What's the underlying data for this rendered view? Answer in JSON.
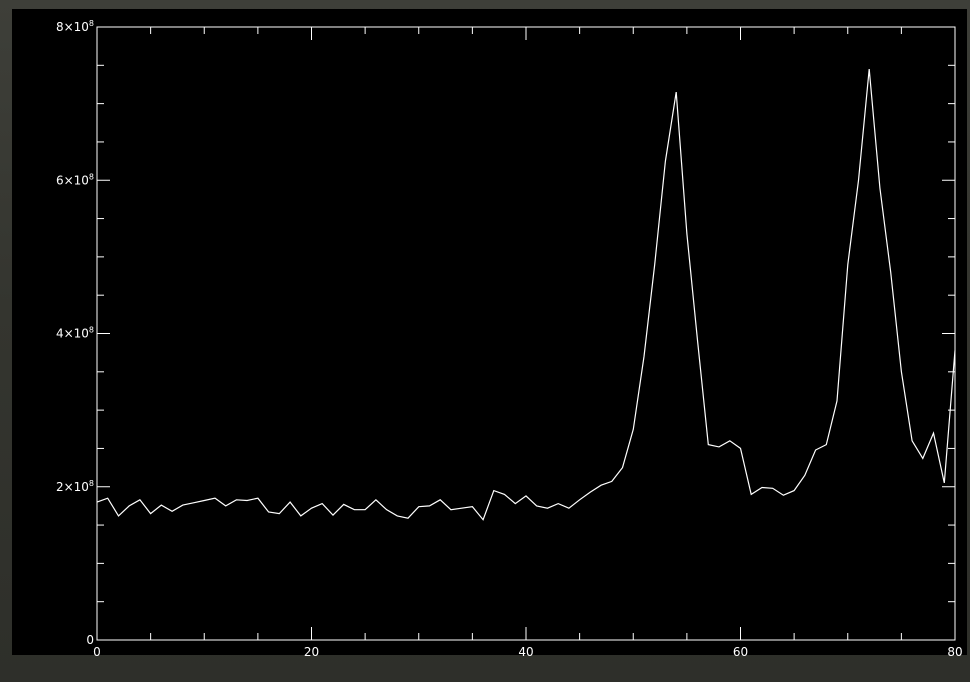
{
  "chart_data": {
    "type": "line",
    "title": "",
    "xlabel": "",
    "ylabel": "",
    "xlim": [
      0,
      80
    ],
    "ylim": [
      0,
      800000000
    ],
    "x_ticks": [
      {
        "value": 0,
        "label": "0"
      },
      {
        "value": 20,
        "label": "20"
      },
      {
        "value": 40,
        "label": "40"
      },
      {
        "value": 60,
        "label": "60"
      },
      {
        "value": 80,
        "label": "80"
      }
    ],
    "y_ticks": [
      {
        "value": 0,
        "label": "0",
        "exp": ""
      },
      {
        "value": 200000000,
        "label": "2×10",
        "exp": "8"
      },
      {
        "value": 400000000,
        "label": "4×10",
        "exp": "8"
      },
      {
        "value": 600000000,
        "label": "6×10",
        "exp": "8"
      },
      {
        "value": 800000000,
        "label": "8×10",
        "exp": "8"
      }
    ],
    "x_minor_step": 5,
    "y_minor_step": 50000000,
    "grid": false,
    "colors": {
      "background": "#000000",
      "line": "#ffffff",
      "axes": "#ffffff"
    },
    "series": [
      {
        "x": [
          0,
          1,
          2,
          3,
          4,
          5,
          6,
          7,
          8,
          9,
          10,
          11,
          12,
          13,
          14,
          15,
          16,
          17,
          18,
          19,
          20,
          21,
          22,
          23,
          24,
          25,
          26,
          27,
          28,
          29,
          30,
          31,
          32,
          33,
          34,
          35,
          36,
          37,
          38,
          39,
          40,
          41,
          42,
          43,
          44,
          45,
          46,
          47,
          48,
          49,
          50,
          51,
          52,
          53,
          54,
          55,
          56,
          57,
          58,
          59,
          60,
          61,
          62,
          63,
          64,
          65,
          66,
          67,
          68,
          69,
          70,
          71,
          72,
          73,
          74,
          75,
          76,
          77,
          78,
          79,
          80
        ],
        "y": [
          180000000,
          185000000,
          162000000,
          175000000,
          183000000,
          165000000,
          176000000,
          168000000,
          176000000,
          179000000,
          182000000,
          185000000,
          175000000,
          183000000,
          182000000,
          185000000,
          167000000,
          165000000,
          180000000,
          162000000,
          172000000,
          178000000,
          163000000,
          177000000,
          170000000,
          170000000,
          183000000,
          170000000,
          162000000,
          159000000,
          174000000,
          175000000,
          183000000,
          170000000,
          172000000,
          174000000,
          157000000,
          195000000,
          190000000,
          178000000,
          188000000,
          175000000,
          172000000,
          178000000,
          172000000,
          183000000,
          193000000,
          202000000,
          207000000,
          225000000,
          275000000,
          370000000,
          490000000,
          625000000,
          715000000,
          530000000,
          390000000,
          255000000,
          252000000,
          260000000,
          250000000,
          190000000,
          199000000,
          198000000,
          189000000,
          195000000,
          215000000,
          248000000,
          255000000,
          312000000,
          490000000,
          600000000,
          745000000,
          590000000,
          480000000,
          350000000,
          260000000,
          237000000,
          270000000,
          205000000,
          378000000
        ]
      }
    ]
  }
}
